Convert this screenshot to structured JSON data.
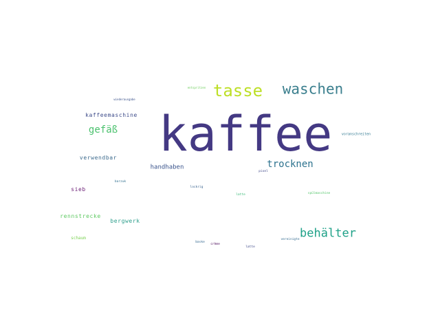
{
  "words": [
    {
      "text": "kaffee",
      "color": "#443983"
    },
    {
      "text": "tasse",
      "color": "#bddf26"
    },
    {
      "text": "waschen",
      "color": "#3b7f8e"
    },
    {
      "text": "behälter",
      "color": "#1fa188"
    },
    {
      "text": "trocknen",
      "color": "#2c728e"
    },
    {
      "text": "gefäß",
      "color": "#4ac16d"
    },
    {
      "text": "kaffeemaschine",
      "color": "#3e4c8a"
    },
    {
      "text": "handhaben",
      "color": "#3a548c"
    },
    {
      "text": "verwendbar",
      "color": "#3d6b8e"
    },
    {
      "text": "sieb",
      "color": "#6c1f77"
    },
    {
      "text": "rennstrecke",
      "color": "#5ec962"
    },
    {
      "text": "bergwerk",
      "color": "#2a9d8a"
    },
    {
      "text": "schaum",
      "color": "#7ad151"
    },
    {
      "text": "entspritzen",
      "color": "#6ccd5a"
    },
    {
      "text": "wiederausgabe",
      "color": "#3b528b"
    },
    {
      "text": "voranschreiten",
      "color": "#2b758e"
    },
    {
      "text": "lockrig",
      "color": "#35608d"
    },
    {
      "text": "pixel",
      "color": "#3f4788"
    },
    {
      "text": "latte",
      "color": "#38b977"
    },
    {
      "text": "spülmaschine",
      "color": "#52c569"
    },
    {
      "text": "barzuk",
      "color": "#2e6e8e"
    },
    {
      "text": "crème",
      "color": "#440154"
    },
    {
      "text": "baske",
      "color": "#31668e"
    },
    {
      "text": "latte",
      "color": "#3e4a89"
    },
    {
      "text": "vereinigte",
      "color": "#30698e"
    }
  ]
}
